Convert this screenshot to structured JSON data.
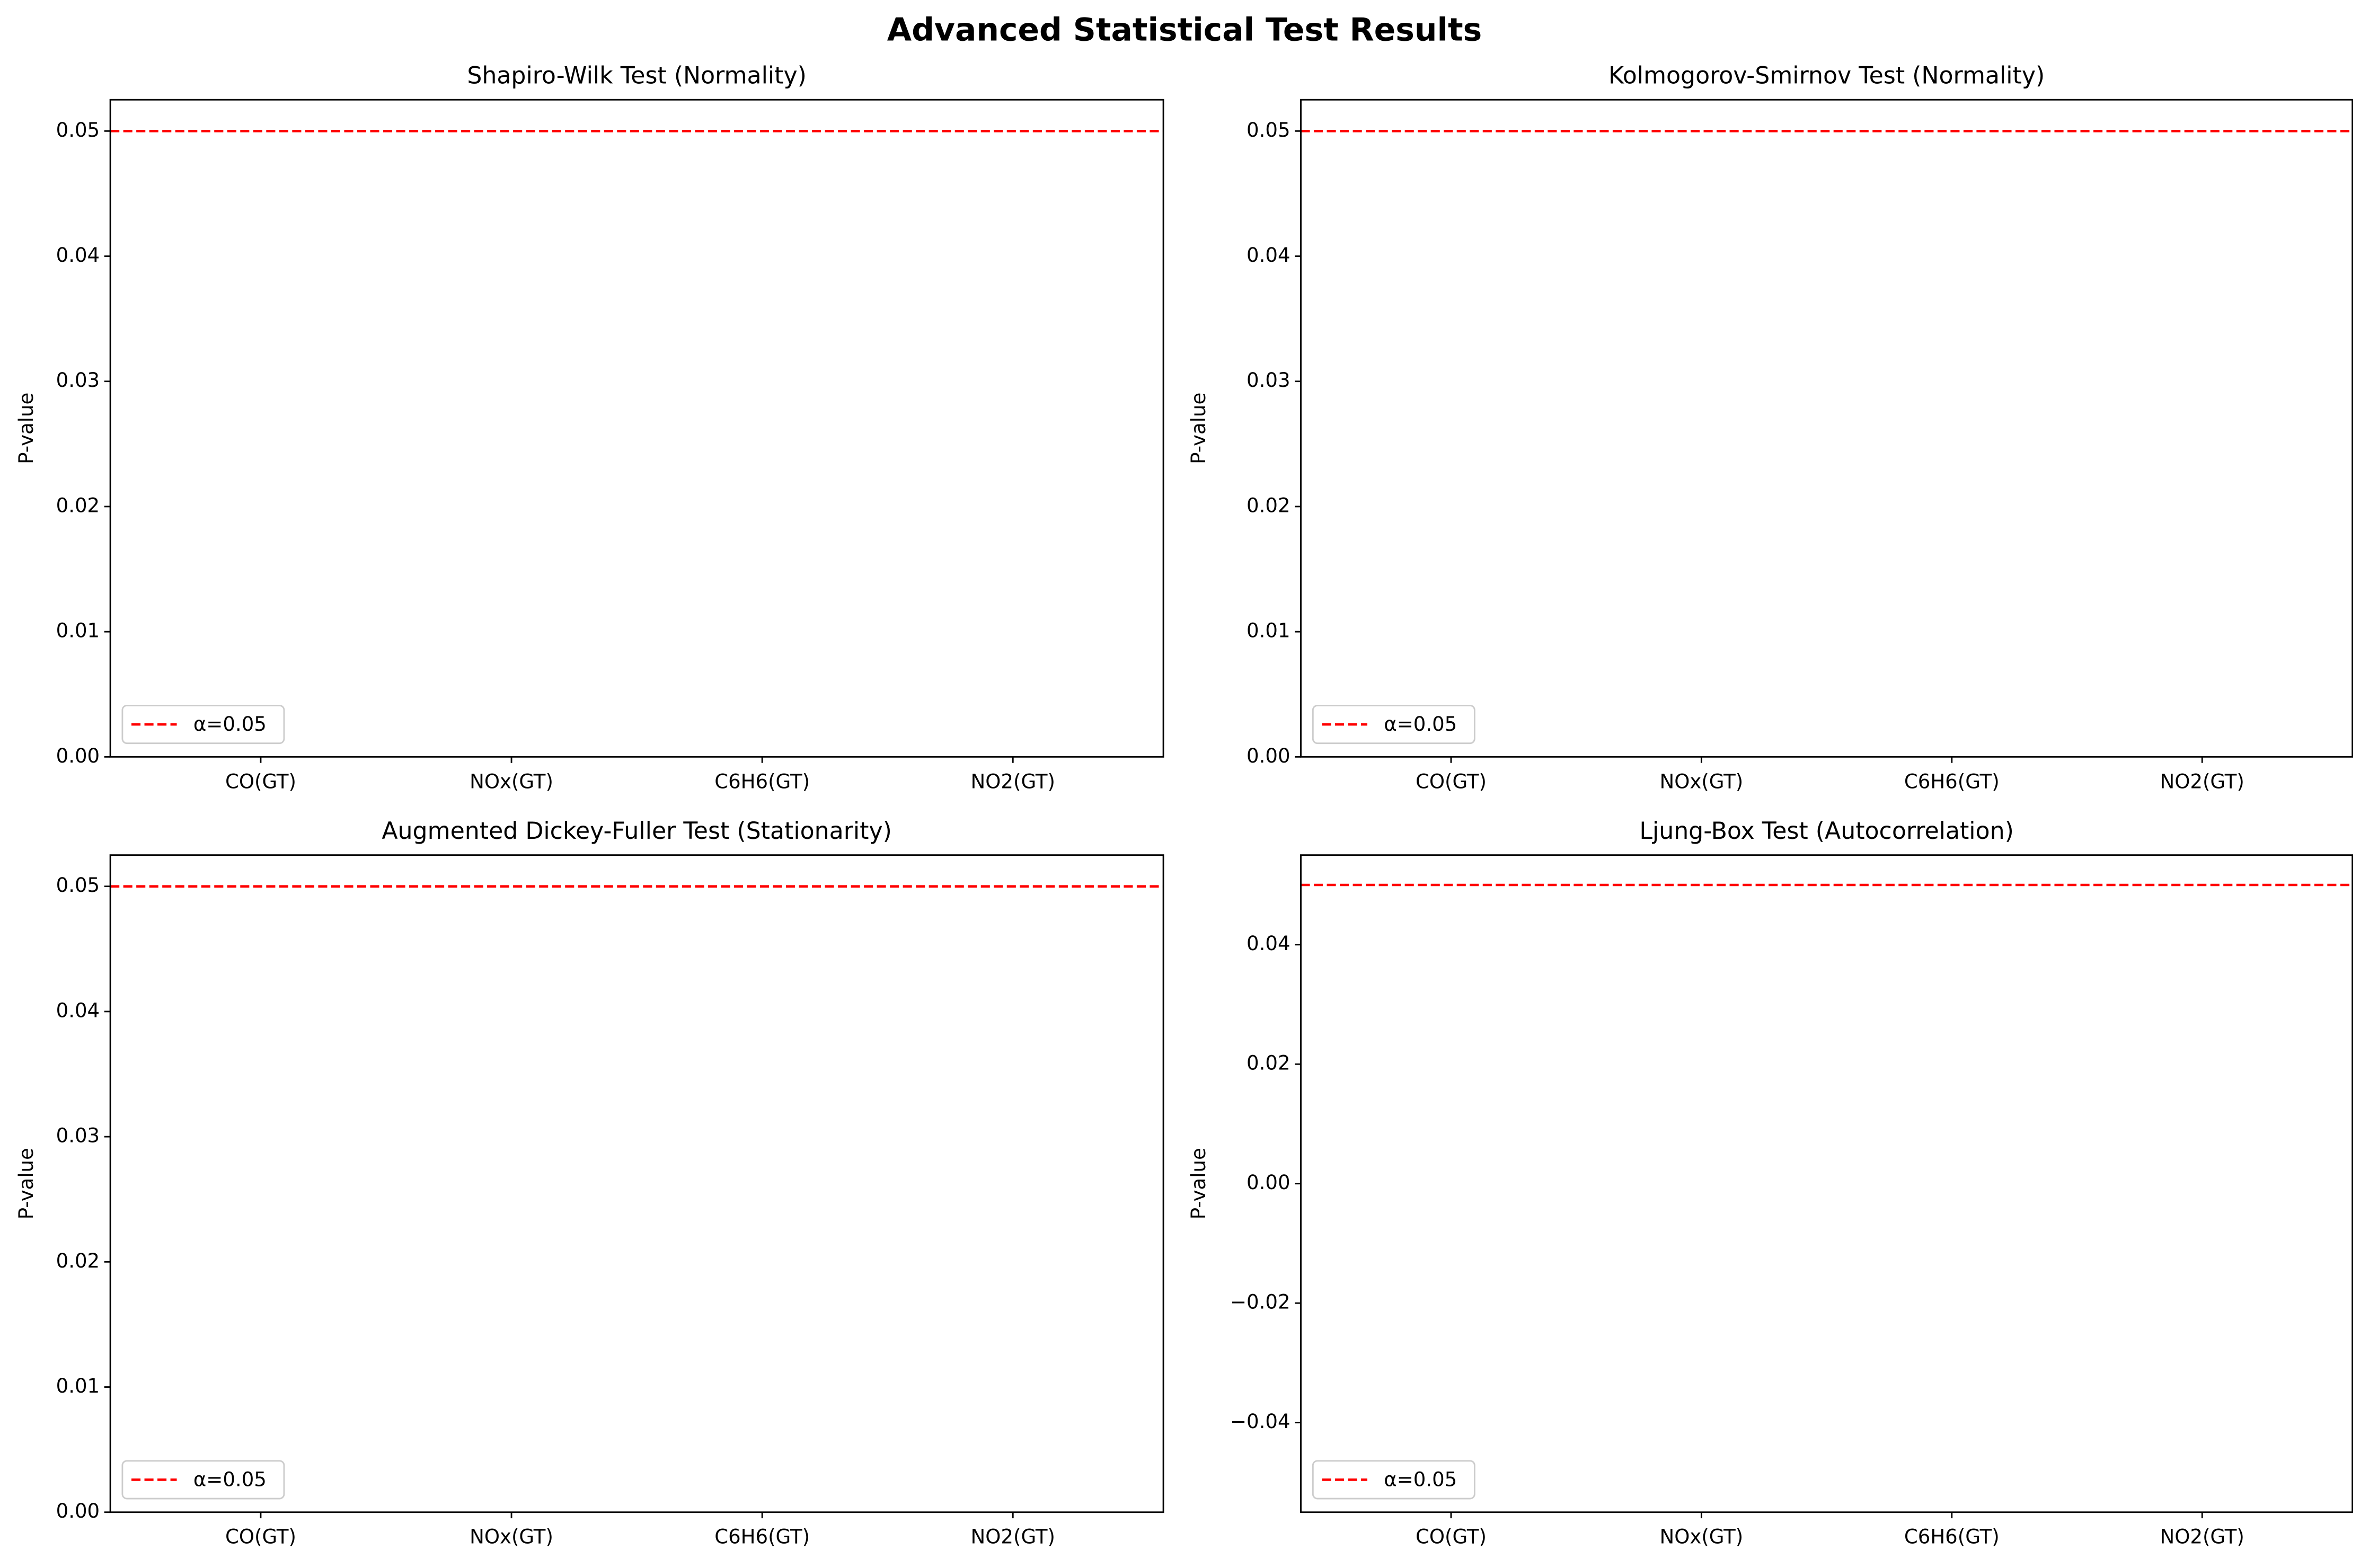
{
  "title": "Advanced Statistical Test Results",
  "chart_data": [
    {
      "type": "bar",
      "title": "Shapiro-Wilk Test (Normality)",
      "ylabel": "P-value",
      "categories": [
        "CO(GT)",
        "NOx(GT)",
        "C6H6(GT)",
        "NO2(GT)"
      ],
      "values": [
        0,
        0,
        0,
        0
      ],
      "ylim": [
        0,
        0.0525
      ],
      "yticks": [
        {
          "value": 0,
          "label": "0.00"
        },
        0.01,
        0.02,
        0.03,
        0.04,
        0.05
      ],
      "threshold": {
        "value": 0.05,
        "label": "α=0.05",
        "color": "#ff0000"
      },
      "legend": "lower left"
    },
    {
      "type": "bar",
      "title": "Kolmogorov-Smirnov Test (Normality)",
      "ylabel": "P-value",
      "categories": [
        "CO(GT)",
        "NOx(GT)",
        "C6H6(GT)",
        "NO2(GT)"
      ],
      "values": [
        0,
        0,
        0,
        0
      ],
      "ylim": [
        0,
        0.0525
      ],
      "yticks": [
        {
          "value": 0,
          "label": "0.00"
        },
        0.01,
        0.02,
        0.03,
        0.04,
        0.05
      ],
      "threshold": {
        "value": 0.05,
        "label": "α=0.05",
        "color": "#ff0000"
      },
      "legend": "lower left"
    },
    {
      "type": "bar",
      "title": "Augmented Dickey-Fuller Test (Stationarity)",
      "ylabel": "P-value",
      "categories": [
        "CO(GT)",
        "NOx(GT)",
        "C6H6(GT)",
        "NO2(GT)"
      ],
      "values": [
        0,
        0,
        0,
        0
      ],
      "ylim": [
        0,
        0.0525
      ],
      "yticks": [
        {
          "value": 0,
          "label": "0.00"
        },
        0.01,
        0.02,
        0.03,
        0.04,
        0.05
      ],
      "threshold": {
        "value": 0.05,
        "label": "α=0.05",
        "color": "#ff0000"
      },
      "legend": "lower left"
    },
    {
      "type": "bar",
      "title": "Ljung-Box Test (Autocorrelation)",
      "ylabel": "P-value",
      "categories": [
        "CO(GT)",
        "NOx(GT)",
        "C6H6(GT)",
        "NO2(GT)"
      ],
      "values": [
        0,
        0,
        0,
        0
      ],
      "ylim": [
        -0.055,
        0.055
      ],
      "yticks": [
        {
          "value": -0.04,
          "label": "−0.04"
        },
        {
          "value": -0.02,
          "label": "−0.02"
        },
        {
          "value": 0,
          "label": "0.00"
        },
        0.02,
        0.04
      ],
      "threshold": {
        "value": 0.05,
        "label": "α=0.05",
        "color": "#ff0000"
      },
      "legend": "lower left"
    }
  ]
}
